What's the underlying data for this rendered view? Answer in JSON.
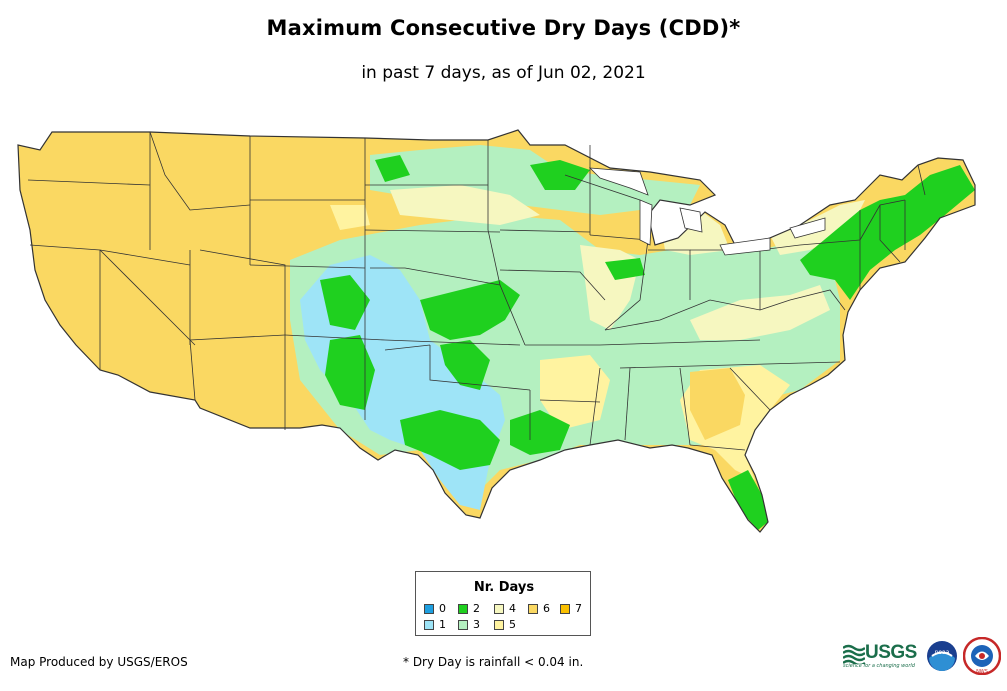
{
  "title": "Maximum Consecutive Dry Days (CDD)*",
  "subtitle": "in past 7 days, as of Jun 02, 2021",
  "legend": {
    "title": "Nr. Days",
    "items": [
      {
        "label": "0",
        "color": "#1e9fe0"
      },
      {
        "label": "1",
        "color": "#9ee4f7"
      },
      {
        "label": "2",
        "color": "#1fd01f"
      },
      {
        "label": "3",
        "color": "#b4f0c0"
      },
      {
        "label": "4",
        "color": "#f6f7c0"
      },
      {
        "label": "5",
        "color": "#fff3a0"
      },
      {
        "label": "6",
        "color": "#fad862"
      },
      {
        "label": "7",
        "color": "#fac000"
      }
    ]
  },
  "footer": {
    "producer": "Map Produced by USGS/EROS",
    "note": "* Dry Day is rainfall < 0.04 in."
  },
  "logos": {
    "usgs": "USGS",
    "usgs_tagline": "science for a changing world",
    "noaa": "noaa",
    "nws": "NWS"
  }
}
